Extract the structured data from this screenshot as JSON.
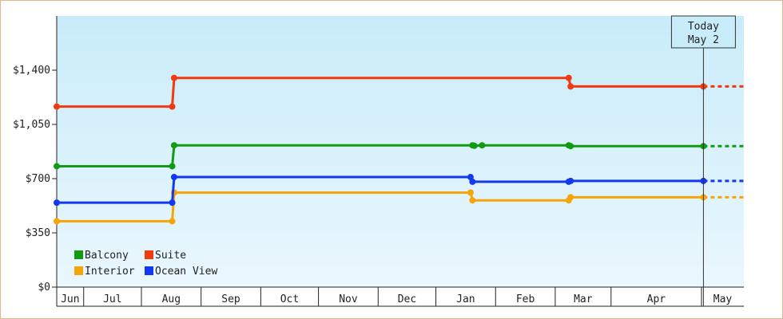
{
  "chart_data": {
    "type": "line",
    "step": true,
    "title": "",
    "xlabel": "",
    "ylabel": "",
    "ylim": [
      0,
      1750
    ],
    "y_ticks": [
      0,
      350,
      700,
      1050,
      1400
    ],
    "y_tick_labels": [
      "$0",
      "$350",
      "$700",
      "$1,050",
      "$1,400"
    ],
    "x_start": "2023-06-01",
    "x_end": "2024-05-23",
    "months": [
      {
        "label": "Jun",
        "start": "2023-06-01"
      },
      {
        "label": "Jul",
        "start": "2023-06-15"
      },
      {
        "label": "Aug",
        "start": "2023-07-15"
      },
      {
        "label": "Sep",
        "start": "2023-08-15"
      },
      {
        "label": "Oct",
        "start": "2023-09-15"
      },
      {
        "label": "Nov",
        "start": "2023-10-15"
      },
      {
        "label": "Dec",
        "start": "2023-11-15"
      },
      {
        "label": "Jan",
        "start": "2023-12-15"
      },
      {
        "label": "Feb",
        "start": "2024-01-15"
      },
      {
        "label": "Mar",
        "start": "2024-02-15"
      },
      {
        "label": "Apr",
        "start": "2024-03-15"
      },
      {
        "label": "May",
        "start": "2024-05-01"
      }
    ],
    "today": {
      "line1": "Today",
      "line2": "May 2",
      "date": "2024-05-02"
    },
    "legend": {
      "placement": "bottom-left"
    },
    "grid": false,
    "series": [
      {
        "name": "Balcony",
        "color": "#129b12",
        "points": [
          {
            "x": "2023-06-01",
            "y": 780
          },
          {
            "x": "2023-07-31",
            "y": 780
          },
          {
            "x": "2023-08-01",
            "y": 915
          },
          {
            "x": "2024-01-03",
            "y": 915
          },
          {
            "x": "2024-01-04",
            "y": 912
          },
          {
            "x": "2024-01-08",
            "y": 915
          },
          {
            "x": "2024-02-22",
            "y": 915
          },
          {
            "x": "2024-02-23",
            "y": 910
          },
          {
            "x": "2024-05-02",
            "y": 910
          }
        ]
      },
      {
        "name": "Suite",
        "color": "#f03a10",
        "points": [
          {
            "x": "2023-06-01",
            "y": 1165
          },
          {
            "x": "2023-07-31",
            "y": 1165
          },
          {
            "x": "2023-08-01",
            "y": 1350
          },
          {
            "x": "2024-02-22",
            "y": 1350
          },
          {
            "x": "2024-02-23",
            "y": 1295
          },
          {
            "x": "2024-05-02",
            "y": 1295
          }
        ]
      },
      {
        "name": "Interior",
        "color": "#f5a50a",
        "points": [
          {
            "x": "2023-06-01",
            "y": 425
          },
          {
            "x": "2023-07-31",
            "y": 425
          },
          {
            "x": "2023-08-01",
            "y": 610
          },
          {
            "x": "2024-01-02",
            "y": 610
          },
          {
            "x": "2024-01-03",
            "y": 560
          },
          {
            "x": "2024-02-22",
            "y": 560
          },
          {
            "x": "2024-02-23",
            "y": 580
          },
          {
            "x": "2024-05-02",
            "y": 580
          }
        ]
      },
      {
        "name": "Ocean View",
        "color": "#1238f0",
        "points": [
          {
            "x": "2023-06-01",
            "y": 545
          },
          {
            "x": "2023-07-31",
            "y": 545
          },
          {
            "x": "2023-08-01",
            "y": 710
          },
          {
            "x": "2024-01-02",
            "y": 710
          },
          {
            "x": "2024-01-03",
            "y": 680
          },
          {
            "x": "2024-02-22",
            "y": 680
          },
          {
            "x": "2024-02-23",
            "y": 685
          },
          {
            "x": "2024-05-02",
            "y": 685
          }
        ]
      }
    ]
  }
}
